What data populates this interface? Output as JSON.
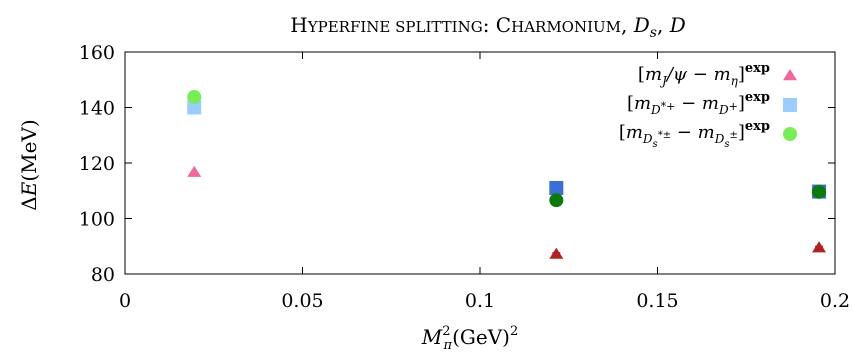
{
  "chart_data": {
    "type": "scatter",
    "title": "Hyperfine splitting: Charmonium, D_s, D",
    "xlabel": "M_π^2 (GeV)^2",
    "ylabel": "ΔE (MeV)",
    "xlim": [
      0,
      0.2
    ],
    "ylim": [
      80,
      160
    ],
    "x_ticks": [
      "0",
      "0.05",
      "0.1",
      "0.15",
      "0.2"
    ],
    "y_ticks": [
      "80",
      "100",
      "120",
      "140",
      "160"
    ],
    "grid": false,
    "legend_position": "top-right",
    "experimental": [
      {
        "name": "[m_J/ψ − m_η]^exp",
        "x": 0.0195,
        "y": 116.5,
        "color": "#f0699c",
        "marker": "triangle"
      },
      {
        "name": "[m_D*+ − m_D+]^exp",
        "x": 0.0195,
        "y": 140.0,
        "color": "#99ccff",
        "marker": "square"
      },
      {
        "name": "[m_Ds*± − m_Ds±]^exp",
        "x": 0.0195,
        "y": 143.8,
        "color": "#77ee55",
        "marker": "circle"
      }
    ],
    "lattice": [
      {
        "series": "charmonium",
        "marker": "triangle",
        "color": "#b22222",
        "points": [
          {
            "x": 0.1215,
            "y": 87.0,
            "err": 0.6
          },
          {
            "x": 0.1955,
            "y": 89.3,
            "err": 0.6
          }
        ]
      },
      {
        "series": "D",
        "marker": "square",
        "color": "#3c6fd4",
        "points": [
          {
            "x": 0.1215,
            "y": 111.0,
            "err": 1.5
          },
          {
            "x": 0.1955,
            "y": 109.7,
            "err": 1.2
          }
        ]
      },
      {
        "series": "D_s",
        "marker": "circle",
        "color": "#0b7a0b",
        "points": [
          {
            "x": 0.1215,
            "y": 106.6,
            "err": 1.8
          },
          {
            "x": 0.1955,
            "y": 109.6,
            "err": 1.4
          }
        ]
      }
    ]
  }
}
